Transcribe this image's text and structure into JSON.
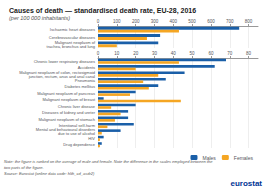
{
  "chart_data": [
    {
      "type": "bar",
      "orientation": "horizontal",
      "title": "Causes of death — standardised death rate, EU-28, 2016",
      "subtitle": "(per 100 000 inhabitants)",
      "categories": [
        "Ischaemic heart diseases",
        "Cerebrovascular diseases",
        "Malignant neoplasm of\ntrachea, bronchus and lung"
      ],
      "series": [
        {
          "name": "Males",
          "color": "#1a5fa8",
          "values": [
            750,
            330,
            320
          ]
        },
        {
          "name": "Females",
          "color": "#f5a623",
          "values": [
            430,
            260,
            100
          ]
        }
      ],
      "xlim": [
        0,
        850
      ],
      "xticks": [
        0,
        100,
        200,
        300,
        400,
        500,
        600,
        700,
        800
      ],
      "grid": true
    },
    {
      "type": "bar",
      "orientation": "horizontal",
      "categories": [
        "Chronic lower respiratory diseases",
        "Accidents",
        "Malignant neoplasm of colon, rectosigmoid\njunction, rectum, anus and anal canal",
        "Pneumonia",
        "Diabetes mellitus",
        "Malignant neoplasm of pancreas",
        "Malignant neoplasm of breast",
        "Chronic liver disease",
        "Diseases of kidney and ureter",
        "Malignant neoplasm of stomach",
        "Intentional self-harm",
        "Mental and behavioural disorders\ndue to use of alcohol",
        "HIV",
        "Drug dependence"
      ],
      "series": [
        {
          "name": "Males",
          "color": "#1a5fa8",
          "values": [
            68,
            62,
            46,
            36,
            32,
            20,
            3,
            20,
            16,
            16,
            19,
            12,
            3,
            2
          ]
        },
        {
          "name": "Females",
          "color": "#f5a623",
          "values": [
            43,
            20,
            32,
            24,
            27,
            17,
            44,
            7,
            12,
            9,
            5,
            2,
            1,
            1
          ]
        }
      ],
      "xlim": [
        0,
        85
      ],
      "xticks": [
        0,
        10,
        20,
        30,
        40,
        50,
        60,
        70,
        80
      ],
      "grid": true,
      "legend": "lower right",
      "annotations": [
        "Note: the figure is ranked on the average of male and female. Note the difference in the scales employed between the",
        "two parts of the figure.",
        "Source: Eurostat (online data code: hlth_cd_asdr2)",
        "eurostat"
      ]
    }
  ]
}
